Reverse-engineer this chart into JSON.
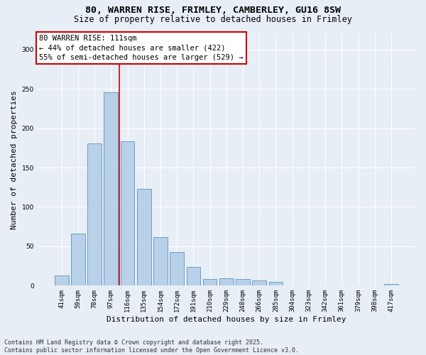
{
  "title_line1": "80, WARREN RISE, FRIMLEY, CAMBERLEY, GU16 8SW",
  "title_line2": "Size of property relative to detached houses in Frimley",
  "xlabel": "Distribution of detached houses by size in Frimley",
  "ylabel": "Number of detached properties",
  "annotation_title": "80 WARREN RISE: 111sqm",
  "annotation_line2": "← 44% of detached houses are smaller (422)",
  "annotation_line3": "55% of semi-detached houses are larger (529) →",
  "footnote_line1": "Contains HM Land Registry data © Crown copyright and database right 2025.",
  "footnote_line2": "Contains public sector information licensed under the Open Government Licence v3.0.",
  "categories": [
    "41sqm",
    "59sqm",
    "78sqm",
    "97sqm",
    "116sqm",
    "135sqm",
    "154sqm",
    "172sqm",
    "191sqm",
    "210sqm",
    "229sqm",
    "248sqm",
    "266sqm",
    "285sqm",
    "304sqm",
    "323sqm",
    "342sqm",
    "361sqm",
    "379sqm",
    "398sqm",
    "417sqm"
  ],
  "values": [
    13,
    66,
    181,
    246,
    183,
    123,
    62,
    43,
    24,
    8,
    9,
    8,
    7,
    5,
    0,
    0,
    0,
    0,
    0,
    0,
    2
  ],
  "bar_color": "#b8d0e8",
  "bar_edge_color": "#6aa0c8",
  "vline_x_index": 3,
  "vline_color": "#cc0000",
  "ylim": [
    0,
    320
  ],
  "yticks": [
    0,
    50,
    100,
    150,
    200,
    250,
    300
  ],
  "background_color": "#e8eef5",
  "plot_bg_color": "#e8eef5",
  "annotation_box_color": "#ffffff",
  "annotation_box_edge": "#cc0000",
  "grid_color": "#ffffff",
  "title_fontsize": 9.5,
  "subtitle_fontsize": 8.5,
  "axis_label_fontsize": 8,
  "tick_fontsize": 6.5,
  "annotation_fontsize": 7.5,
  "footnote_fontsize": 6
}
